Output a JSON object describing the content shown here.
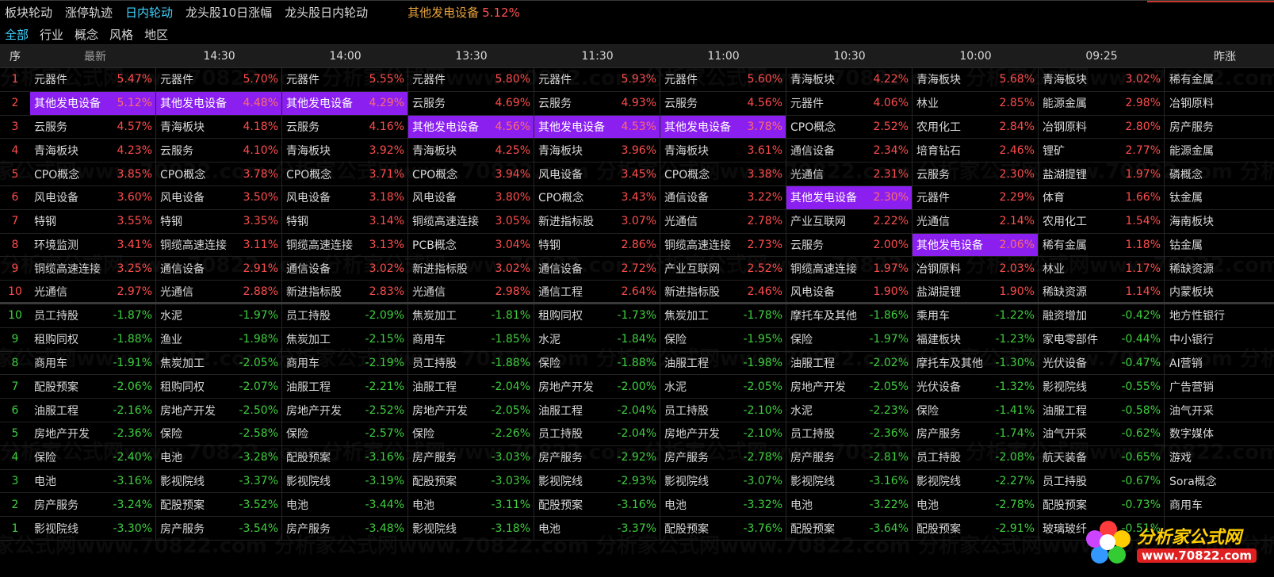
{
  "top_tabs": [
    "板块轮动",
    "涨停轨迹",
    "日内轮动",
    "龙头股10日涨幅",
    "龙头股日内轮动"
  ],
  "active_tab": 2,
  "highlight": {
    "name": "其他发电设备",
    "pct": "5.12%"
  },
  "filters": [
    "全部",
    "行业",
    "概念",
    "风格",
    "地区"
  ],
  "active_filter": 0,
  "headers": [
    "序",
    "最新",
    "14:30",
    "14:00",
    "13:30",
    "11:30",
    "11:00",
    "10:30",
    "10:00",
    "09:25",
    "昨涨"
  ],
  "highlight_color": "#8a1ff0",
  "rows_top": [
    {
      "seq": "1",
      "cells": [
        [
          "元器件",
          "5.47%"
        ],
        [
          "元器件",
          "5.70%"
        ],
        [
          "元器件",
          "5.55%"
        ],
        [
          "元器件",
          "5.80%"
        ],
        [
          "元器件",
          "5.93%"
        ],
        [
          "元器件",
          "5.60%"
        ],
        [
          "青海板块",
          "4.22%"
        ],
        [
          "青海板块",
          "5.68%"
        ],
        [
          "青海板块",
          "3.02%"
        ]
      ],
      "last": "稀有金属"
    },
    {
      "seq": "2",
      "cells": [
        [
          "其他发电设备",
          "5.12%"
        ],
        [
          "其他发电设备",
          "4.48%"
        ],
        [
          "其他发电设备",
          "4.29%"
        ],
        [
          "云服务",
          "4.69%"
        ],
        [
          "云服务",
          "4.93%"
        ],
        [
          "云服务",
          "4.56%"
        ],
        [
          "元器件",
          "4.06%"
        ],
        [
          "林业",
          "2.85%"
        ],
        [
          "能源金属",
          "2.98%"
        ]
      ],
      "last": "冶钢原料"
    },
    {
      "seq": "3",
      "cells": [
        [
          "云服务",
          "4.57%"
        ],
        [
          "青海板块",
          "4.18%"
        ],
        [
          "云服务",
          "4.16%"
        ],
        [
          "其他发电设备",
          "4.56%"
        ],
        [
          "其他发电设备",
          "4.53%"
        ],
        [
          "其他发电设备",
          "3.78%"
        ],
        [
          "CPO概念",
          "2.52%"
        ],
        [
          "农用化工",
          "2.84%"
        ],
        [
          "冶钢原料",
          "2.80%"
        ]
      ],
      "last": "房产服务"
    },
    {
      "seq": "4",
      "cells": [
        [
          "青海板块",
          "4.23%"
        ],
        [
          "云服务",
          "4.10%"
        ],
        [
          "青海板块",
          "3.92%"
        ],
        [
          "青海板块",
          "4.25%"
        ],
        [
          "青海板块",
          "3.96%"
        ],
        [
          "青海板块",
          "3.61%"
        ],
        [
          "通信设备",
          "2.34%"
        ],
        [
          "培育钻石",
          "2.46%"
        ],
        [
          "锂矿",
          "2.77%"
        ]
      ],
      "last": "能源金属"
    },
    {
      "seq": "5",
      "cells": [
        [
          "CPO概念",
          "3.85%"
        ],
        [
          "CPO概念",
          "3.78%"
        ],
        [
          "CPO概念",
          "3.71%"
        ],
        [
          "CPO概念",
          "3.94%"
        ],
        [
          "风电设备",
          "3.45%"
        ],
        [
          "CPO概念",
          "3.38%"
        ],
        [
          "光通信",
          "2.31%"
        ],
        [
          "云服务",
          "2.30%"
        ],
        [
          "盐湖提锂",
          "1.97%"
        ]
      ],
      "last": "磷概念"
    },
    {
      "seq": "6",
      "cells": [
        [
          "风电设备",
          "3.60%"
        ],
        [
          "风电设备",
          "3.50%"
        ],
        [
          "风电设备",
          "3.18%"
        ],
        [
          "风电设备",
          "3.80%"
        ],
        [
          "CPO概念",
          "3.43%"
        ],
        [
          "通信设备",
          "3.22%"
        ],
        [
          "其他发电设备",
          "2.30%"
        ],
        [
          "元器件",
          "2.29%"
        ],
        [
          "体育",
          "1.66%"
        ]
      ],
      "last": "钛金属"
    },
    {
      "seq": "7",
      "cells": [
        [
          "特钢",
          "3.55%"
        ],
        [
          "特钢",
          "3.35%"
        ],
        [
          "特钢",
          "3.14%"
        ],
        [
          "铜缆高速连接",
          "3.05%"
        ],
        [
          "新进指标股",
          "3.07%"
        ],
        [
          "光通信",
          "2.78%"
        ],
        [
          "产业互联网",
          "2.22%"
        ],
        [
          "光通信",
          "2.14%"
        ],
        [
          "农用化工",
          "1.54%"
        ]
      ],
      "last": "海南板块"
    },
    {
      "seq": "8",
      "cells": [
        [
          "环境监测",
          "3.41%"
        ],
        [
          "铜缆高速连接",
          "3.11%"
        ],
        [
          "铜缆高速连接",
          "3.13%"
        ],
        [
          "PCB概念",
          "3.04%"
        ],
        [
          "特钢",
          "2.86%"
        ],
        [
          "铜缆高速连接",
          "2.73%"
        ],
        [
          "云服务",
          "2.00%"
        ],
        [
          "其他发电设备",
          "2.06%"
        ],
        [
          "稀有金属",
          "1.18%"
        ]
      ],
      "last": "钴金属"
    },
    {
      "seq": "9",
      "cells": [
        [
          "铜缆高速连接",
          "3.25%"
        ],
        [
          "通信设备",
          "2.91%"
        ],
        [
          "通信设备",
          "3.02%"
        ],
        [
          "新进指标股",
          "3.02%"
        ],
        [
          "通信设备",
          "2.72%"
        ],
        [
          "产业互联网",
          "2.52%"
        ],
        [
          "铜缆高速连接",
          "1.97%"
        ],
        [
          "冶钢原料",
          "2.03%"
        ],
        [
          "林业",
          "1.17%"
        ]
      ],
      "last": "稀缺资源"
    },
    {
      "seq": "10",
      "cells": [
        [
          "光通信",
          "2.97%"
        ],
        [
          "光通信",
          "2.88%"
        ],
        [
          "新进指标股",
          "2.83%"
        ],
        [
          "光通信",
          "2.98%"
        ],
        [
          "通信工程",
          "2.64%"
        ],
        [
          "新进指标股",
          "2.46%"
        ],
        [
          "风电设备",
          "1.90%"
        ],
        [
          "盐湖提锂",
          "1.90%"
        ],
        [
          "稀缺资源",
          "1.14%"
        ]
      ],
      "last": "内蒙板块"
    }
  ],
  "rows_bottom": [
    {
      "seq": "10",
      "cells": [
        [
          "员工持股",
          "-1.87%"
        ],
        [
          "水泥",
          "-1.97%"
        ],
        [
          "员工持股",
          "-2.09%"
        ],
        [
          "焦炭加工",
          "-1.81%"
        ],
        [
          "租购同权",
          "-1.73%"
        ],
        [
          "焦炭加工",
          "-1.78%"
        ],
        [
          "摩托车及其他",
          "-1.86%"
        ],
        [
          "乘用车",
          "-1.22%"
        ],
        [
          "融资增加",
          "-0.42%"
        ]
      ],
      "last": "地方性银行"
    },
    {
      "seq": "9",
      "cells": [
        [
          "租购同权",
          "-1.88%"
        ],
        [
          "渔业",
          "-1.98%"
        ],
        [
          "焦炭加工",
          "-2.15%"
        ],
        [
          "商用车",
          "-1.85%"
        ],
        [
          "水泥",
          "-1.84%"
        ],
        [
          "保险",
          "-1.95%"
        ],
        [
          "保险",
          "-1.97%"
        ],
        [
          "福建板块",
          "-1.23%"
        ],
        [
          "家电零部件",
          "-0.44%"
        ]
      ],
      "last": "中小银行"
    },
    {
      "seq": "8",
      "cells": [
        [
          "商用车",
          "-1.91%"
        ],
        [
          "焦炭加工",
          "-2.05%"
        ],
        [
          "商用车",
          "-2.19%"
        ],
        [
          "员工持股",
          "-1.88%"
        ],
        [
          "保险",
          "-1.88%"
        ],
        [
          "油服工程",
          "-1.98%"
        ],
        [
          "油服工程",
          "-2.02%"
        ],
        [
          "摩托车及其他",
          "-1.30%"
        ],
        [
          "光伏设备",
          "-0.47%"
        ]
      ],
      "last": "AI营销"
    },
    {
      "seq": "7",
      "cells": [
        [
          "配股预案",
          "-2.06%"
        ],
        [
          "租购同权",
          "-2.07%"
        ],
        [
          "油服工程",
          "-2.21%"
        ],
        [
          "油服工程",
          "-2.04%"
        ],
        [
          "房地产开发",
          "-2.00%"
        ],
        [
          "水泥",
          "-2.05%"
        ],
        [
          "房地产开发",
          "-2.05%"
        ],
        [
          "光伏设备",
          "-1.32%"
        ],
        [
          "影视院线",
          "-0.55%"
        ]
      ],
      "last": "广告营销"
    },
    {
      "seq": "6",
      "cells": [
        [
          "油服工程",
          "-2.16%"
        ],
        [
          "房地产开发",
          "-2.50%"
        ],
        [
          "房地产开发",
          "-2.52%"
        ],
        [
          "房地产开发",
          "-2.05%"
        ],
        [
          "油服工程",
          "-2.04%"
        ],
        [
          "员工持股",
          "-2.10%"
        ],
        [
          "水泥",
          "-2.23%"
        ],
        [
          "保险",
          "-1.41%"
        ],
        [
          "油服工程",
          "-0.58%"
        ]
      ],
      "last": "油气开采"
    },
    {
      "seq": "5",
      "cells": [
        [
          "房地产开发",
          "-2.36%"
        ],
        [
          "保险",
          "-2.58%"
        ],
        [
          "保险",
          "-2.57%"
        ],
        [
          "保险",
          "-2.26%"
        ],
        [
          "员工持股",
          "-2.04%"
        ],
        [
          "房地产开发",
          "-2.10%"
        ],
        [
          "员工持股",
          "-2.36%"
        ],
        [
          "房产服务",
          "-1.74%"
        ],
        [
          "油气开采",
          "-0.62%"
        ]
      ],
      "last": "数字媒体"
    },
    {
      "seq": "4",
      "cells": [
        [
          "保险",
          "-2.40%"
        ],
        [
          "电池",
          "-3.28%"
        ],
        [
          "配股预案",
          "-3.16%"
        ],
        [
          "房产服务",
          "-3.03%"
        ],
        [
          "房产服务",
          "-2.92%"
        ],
        [
          "房产服务",
          "-2.78%"
        ],
        [
          "房产服务",
          "-2.81%"
        ],
        [
          "员工持股",
          "-2.08%"
        ],
        [
          "航天装备",
          "-0.65%"
        ]
      ],
      "last": "游戏"
    },
    {
      "seq": "3",
      "cells": [
        [
          "电池",
          "-3.16%"
        ],
        [
          "影视院线",
          "-3.37%"
        ],
        [
          "影视院线",
          "-3.19%"
        ],
        [
          "配股预案",
          "-3.03%"
        ],
        [
          "影视院线",
          "-2.93%"
        ],
        [
          "影视院线",
          "-3.07%"
        ],
        [
          "影视院线",
          "-3.16%"
        ],
        [
          "影视院线",
          "-2.27%"
        ],
        [
          "员工持股",
          "-0.67%"
        ]
      ],
      "last": "Sora概念"
    },
    {
      "seq": "2",
      "cells": [
        [
          "房产服务",
          "-3.24%"
        ],
        [
          "配股预案",
          "-3.52%"
        ],
        [
          "电池",
          "-3.44%"
        ],
        [
          "电池",
          "-3.11%"
        ],
        [
          "配股预案",
          "-3.16%"
        ],
        [
          "电池",
          "-3.32%"
        ],
        [
          "电池",
          "-3.22%"
        ],
        [
          "电池",
          "-2.78%"
        ],
        [
          "配股预案",
          "-0.73%"
        ]
      ],
      "last": "商用车"
    },
    {
      "seq": "1",
      "cells": [
        [
          "影视院线",
          "-3.30%"
        ],
        [
          "房产服务",
          "-3.54%"
        ],
        [
          "房产服务",
          "-3.48%"
        ],
        [
          "影视院线",
          "-3.18%"
        ],
        [
          "电池",
          "-3.37%"
        ],
        [
          "配股预案",
          "-3.76%"
        ],
        [
          "配股预案",
          "-3.64%"
        ],
        [
          "配股预案",
          "-2.91%"
        ],
        [
          "玻璃玻纤",
          "-0.51%"
        ]
      ],
      "last": ""
    }
  ],
  "watermark_text": "分析家公式网www.70822.com",
  "logo": {
    "title": "分析家公式网",
    "url": "www.70822.com"
  }
}
